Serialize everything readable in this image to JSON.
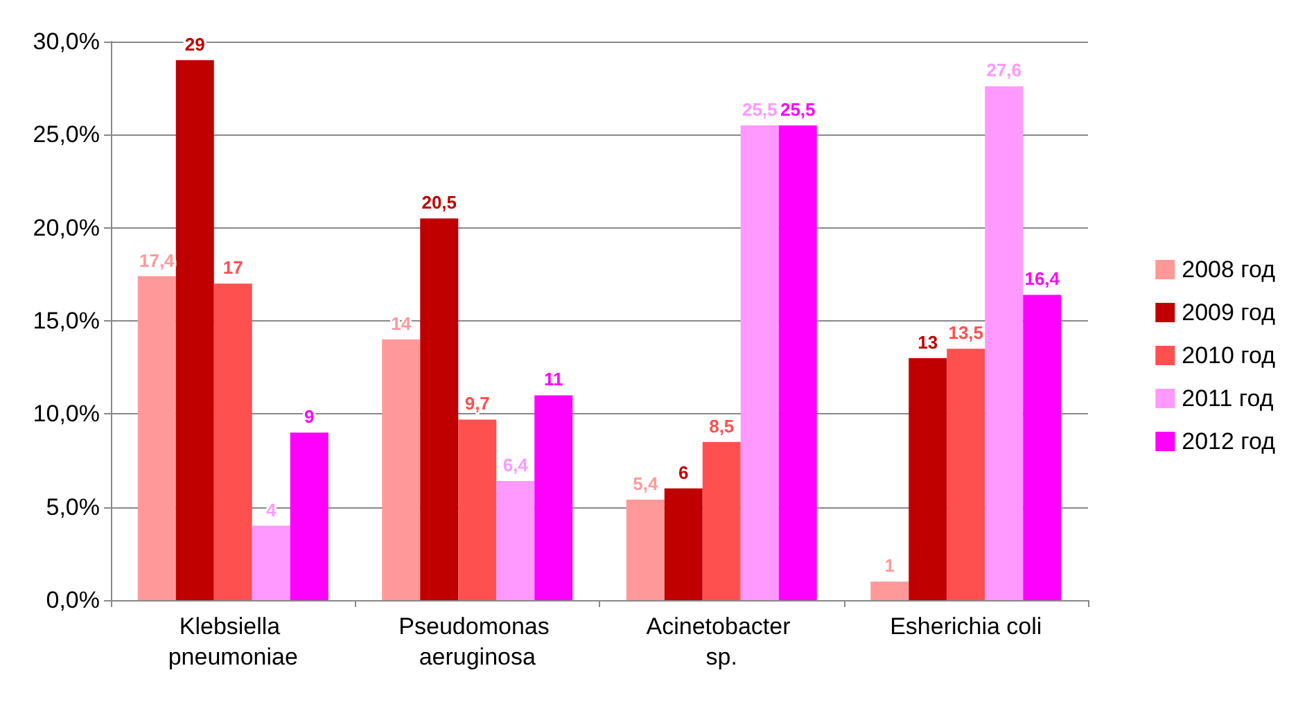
{
  "chart_data": {
    "type": "bar",
    "categories": [
      "Klebsiella pneumoniae",
      "Pseudomonas aeruginosa",
      "Acinetobacter sp.",
      "Esherichia coli"
    ],
    "series": [
      {
        "name": "2008 год",
        "color": "#ff9999",
        "values": [
          17.4,
          14,
          5.4,
          1
        ],
        "value_labels": [
          "17,4",
          "14",
          "5,4",
          "1"
        ]
      },
      {
        "name": "2009 год",
        "color": "#c00000",
        "values": [
          29,
          20.5,
          6,
          13
        ],
        "value_labels": [
          "29",
          "20,5",
          "6",
          "13"
        ]
      },
      {
        "name": "2010 год",
        "color": "#ff5050",
        "values": [
          17,
          9.7,
          8.5,
          13.5
        ],
        "value_labels": [
          "17",
          "9,7",
          "8,5",
          "13,5"
        ]
      },
      {
        "name": "2011 год",
        "color": "#ff99ff",
        "values": [
          4,
          6.4,
          25.5,
          27.6
        ],
        "value_labels": [
          "4",
          "6,4",
          "25,5",
          "27,6"
        ]
      },
      {
        "name": "2012 год",
        "color": "#ff00ff",
        "values": [
          9,
          11,
          25.5,
          16.4
        ],
        "value_labels": [
          "9",
          "11",
          "25,5",
          "16,4"
        ]
      }
    ],
    "ylim": [
      0,
      30
    ],
    "yticks": [
      {
        "value": 0,
        "label": "0,0%"
      },
      {
        "value": 5,
        "label": "5,0%"
      },
      {
        "value": 10,
        "label": "10,0%"
      },
      {
        "value": 15,
        "label": "15,0%"
      },
      {
        "value": 20,
        "label": "20,0%"
      },
      {
        "value": 25,
        "label": "25,0%"
      },
      {
        "value": 30,
        "label": "30,0%"
      }
    ],
    "grid": "y",
    "legend": "right"
  }
}
